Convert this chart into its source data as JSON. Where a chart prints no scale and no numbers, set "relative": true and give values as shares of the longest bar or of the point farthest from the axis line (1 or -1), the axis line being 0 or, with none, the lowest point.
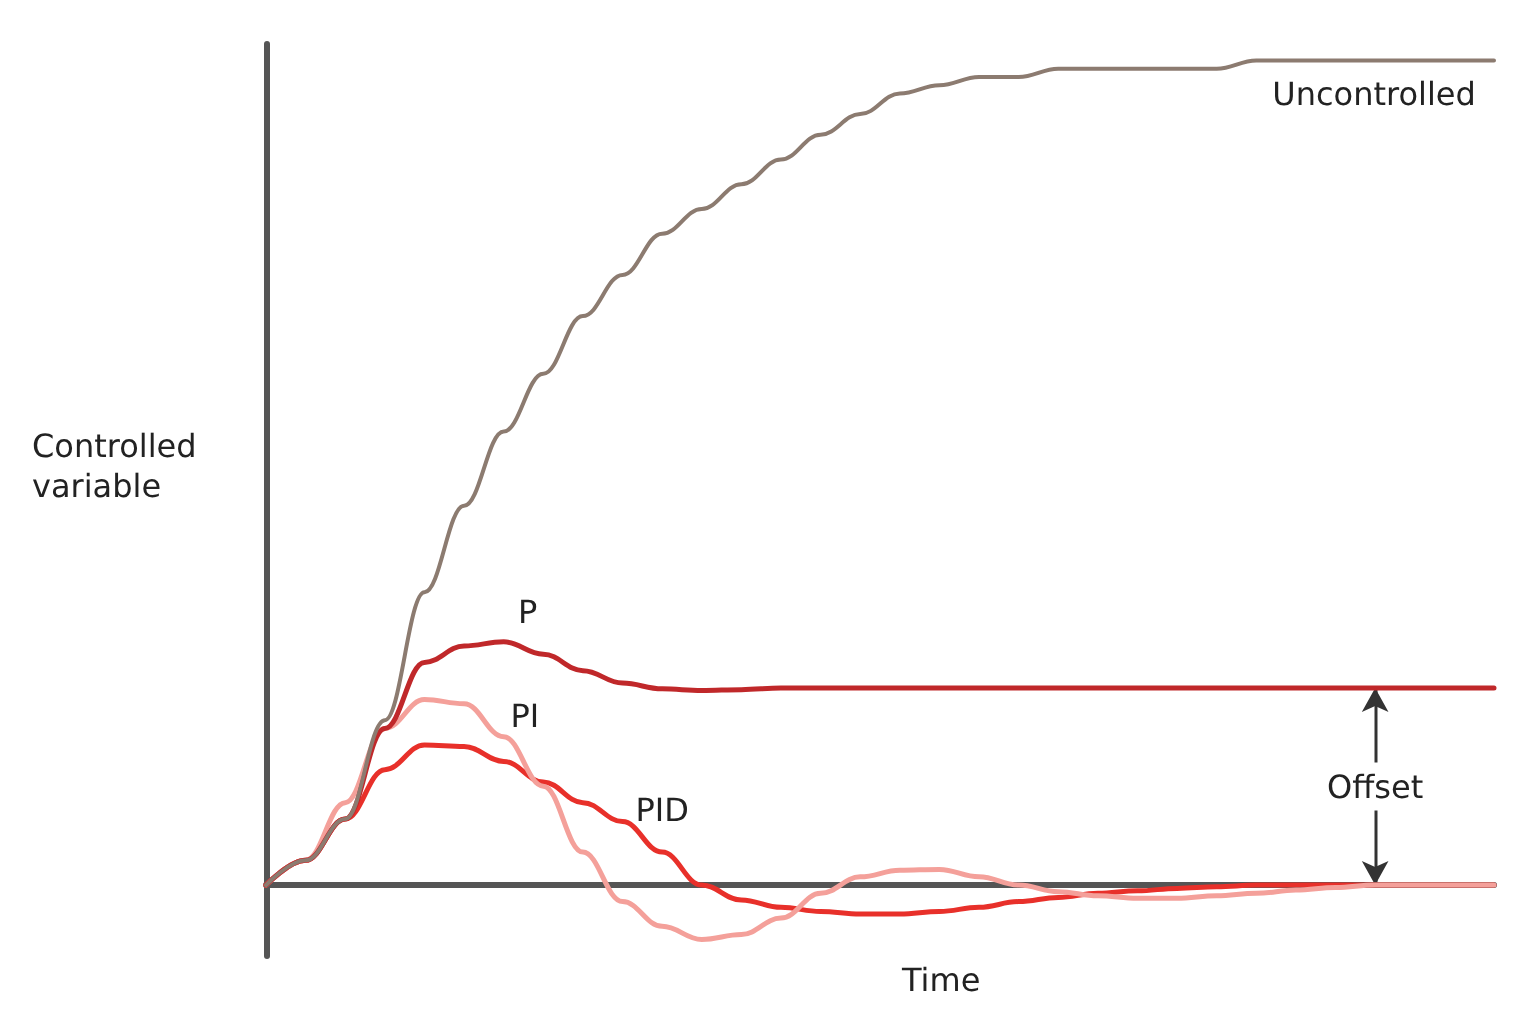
{
  "chart_data": {
    "type": "line",
    "relative": true,
    "marker": "none",
    "line_style": "solid",
    "xlabel": "Time",
    "ylabel": "Controlled variable",
    "categories": [
      null,
      null,
      null,
      null,
      null,
      null,
      null,
      null,
      null,
      null,
      null,
      null,
      null,
      null,
      null,
      null,
      null,
      null,
      null,
      null,
      null,
      null,
      null,
      null,
      null,
      null,
      null,
      null,
      null,
      null,
      null,
      null
    ],
    "series": [
      {
        "name": "Uncontrolled",
        "color": "#8c7b70",
        "values": [
          0,
          0.03,
          0.08,
          0.2,
          0.355,
          0.46,
          0.55,
          0.62,
          0.69,
          0.74,
          0.79,
          0.82,
          0.85,
          0.88,
          0.91,
          0.935,
          0.96,
          0.97,
          0.98,
          0.98,
          0.99,
          0.99,
          0.99,
          0.99,
          0.99,
          1,
          1,
          1,
          1,
          1,
          1,
          1
        ]
      },
      {
        "name": "P",
        "color": "#c0282a",
        "values": [
          0,
          0.03,
          0.08,
          0.19,
          0.27,
          0.29,
          0.295,
          0.28,
          0.26,
          0.245,
          0.238,
          0.236,
          0.237,
          0.239,
          0.239,
          0.239,
          0.239,
          0.239,
          0.239,
          0.239,
          0.239,
          0.239,
          0.239,
          0.239,
          0.239,
          0.239,
          0.239,
          0.239,
          0.239,
          0.239,
          0.239,
          0.239
        ]
      },
      {
        "name": "PI",
        "color": "#f4a09a",
        "values": [
          0,
          0.03,
          0.1,
          0.19,
          0.225,
          0.22,
          0.18,
          0.12,
          0.04,
          -0.02,
          -0.05,
          -0.066,
          -0.06,
          -0.04,
          -0.01,
          0.01,
          0.018,
          0.019,
          0.01,
          0,
          -0.008,
          -0.013,
          -0.016,
          -0.016,
          -0.013,
          -0.01,
          -0.006,
          -0.003,
          0,
          0,
          0,
          0
        ]
      },
      {
        "name": "PID",
        "color": "#e8302a",
        "values": [
          0,
          0.03,
          0.08,
          0.14,
          0.17,
          0.168,
          0.15,
          0.125,
          0.1,
          0.077,
          0.04,
          0,
          -0.018,
          -0.027,
          -0.032,
          -0.035,
          -0.035,
          -0.032,
          -0.027,
          -0.02,
          -0.015,
          -0.01,
          -0.007,
          -0.004,
          -0.002,
          0,
          0,
          0,
          0,
          0,
          0,
          0
        ]
      }
    ],
    "annotations": [
      "Offset"
    ]
  }
}
